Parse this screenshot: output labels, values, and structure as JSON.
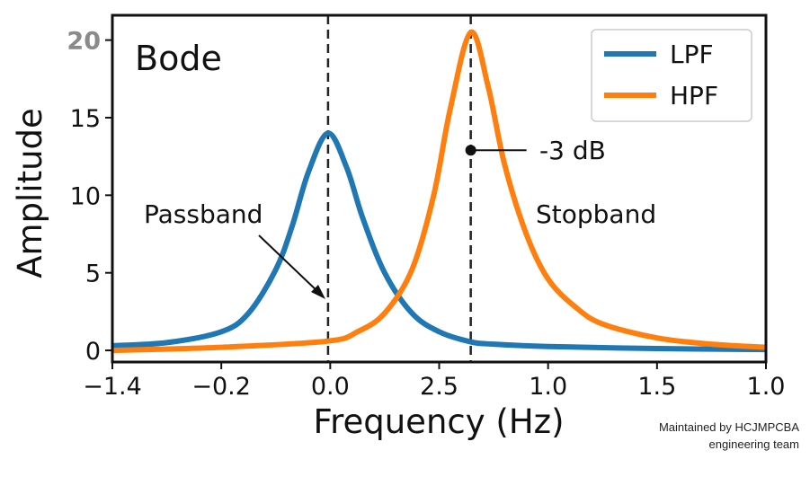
{
  "chart_data": {
    "type": "line",
    "title": "Bode",
    "xlabel": "Frequency (Hz)",
    "ylabel": "Amplitude",
    "x_tick_labels": [
      "−1.4",
      "−0.2",
      "0.0",
      "2.5",
      "1.0",
      "1.5",
      "1.0"
    ],
    "y_ticks": [
      0,
      5,
      10,
      15,
      20
    ],
    "ylim": [
      -0.75,
      21.6
    ],
    "grid": false,
    "legend": {
      "placement": "top-right",
      "entries": [
        "LPF",
        "HPF"
      ]
    },
    "colors": {
      "LPF": "#1f77b4",
      "HPF": "#ff7f0e"
    },
    "series": [
      {
        "name": "LPF",
        "x": [
          0,
          0.5,
          1.0,
          1.25,
          1.5,
          1.65,
          1.8,
          1.98,
          2.15,
          2.3,
          2.5,
          2.75,
          3.0,
          3.29,
          3.5,
          4.0,
          5.0,
          6.0
        ],
        "y": [
          0.3,
          0.5,
          1.2,
          2.4,
          5.2,
          8.0,
          11.5,
          14.0,
          11.8,
          8.5,
          5.0,
          2.4,
          1.2,
          0.55,
          0.4,
          0.25,
          0.12,
          0.05
        ]
      },
      {
        "name": "HPF",
        "x": [
          0,
          1.0,
          1.98,
          2.25,
          2.5,
          2.75,
          2.95,
          3.1,
          3.29,
          3.45,
          3.6,
          3.8,
          4.0,
          4.25,
          4.5,
          5.0,
          5.5,
          6.0
        ],
        "y": [
          0.0,
          0.2,
          0.6,
          1.2,
          2.4,
          5.2,
          10.0,
          15.5,
          20.5,
          17.0,
          12.0,
          7.5,
          4.6,
          2.8,
          1.7,
          0.8,
          0.4,
          0.2
        ]
      }
    ],
    "vertical_lines": [
      1.98,
      3.29
    ],
    "annotations": [
      {
        "text": "Passband",
        "arrow": true
      },
      {
        "text": "Stopband"
      },
      {
        "text": "-3 dB",
        "point": [
          3.29,
          12.9
        ]
      }
    ]
  },
  "footer": {
    "line1": "Maintained by HCJMPCBA",
    "line2": "engineering team"
  }
}
